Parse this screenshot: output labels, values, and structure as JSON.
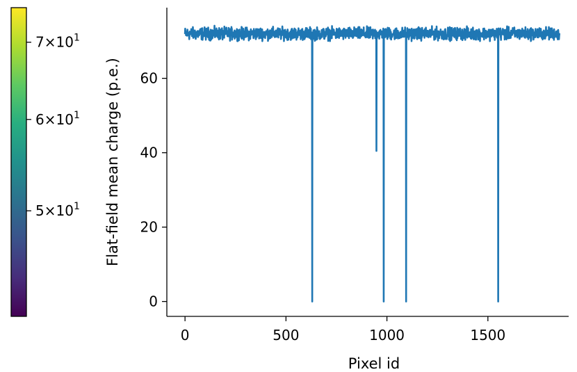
{
  "chart_data": {
    "type": "line",
    "xlabel": "Pixel id",
    "ylabel": "Flat-field mean charge (p.e.)",
    "xlim": [
      -90,
      1900
    ],
    "ylim": [
      -4,
      79
    ],
    "x_ticks": [
      {
        "value": 0,
        "label": "0"
      },
      {
        "value": 500,
        "label": "500"
      },
      {
        "value": 1000,
        "label": "1000"
      },
      {
        "value": 1500,
        "label": "1500"
      }
    ],
    "y_ticks": [
      {
        "value": 0,
        "label": "0"
      },
      {
        "value": 20,
        "label": "20"
      },
      {
        "value": 40,
        "label": "40"
      },
      {
        "value": 60,
        "label": "60"
      }
    ],
    "grid": false,
    "series": [
      {
        "color": "#1f77b4",
        "n_pixels": 1855,
        "baseline_mean": 72.0,
        "baseline_range": [
          70.0,
          75.0
        ],
        "dips": [
          {
            "pixel": 630,
            "value": 0
          },
          {
            "pixel": 948,
            "value": 40.5
          },
          {
            "pixel": 984,
            "value": 0
          },
          {
            "pixel": 1095,
            "value": 0
          },
          {
            "pixel": 1551,
            "value": 0
          }
        ]
      }
    ],
    "colorbar": {
      "colormap": "viridis",
      "scale": "log",
      "range": [
        40.5,
        75.0
      ],
      "ticks": [
        {
          "value": 50,
          "mantissa": "5",
          "base": "10",
          "exp": "1"
        },
        {
          "value": 60,
          "mantissa": "6",
          "base": "10",
          "exp": "1"
        },
        {
          "value": 70,
          "mantissa": "7",
          "base": "10",
          "exp": "1"
        }
      ]
    }
  }
}
